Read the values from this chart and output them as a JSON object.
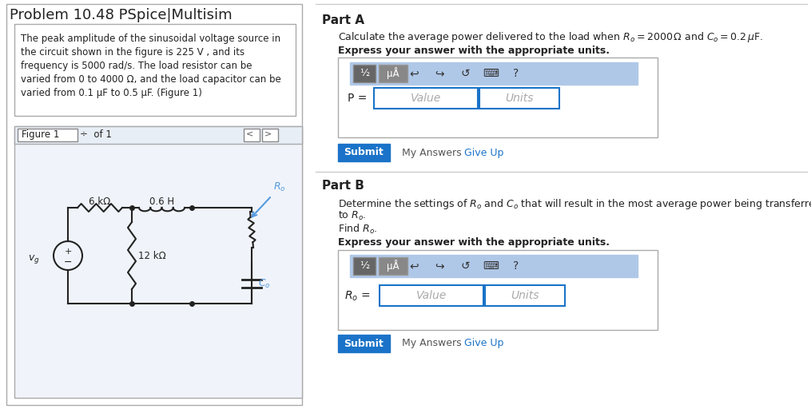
{
  "title": "Problem 10.48 PSpice|Multisim",
  "bg_color": "#ffffff",
  "left_panel_bg": "#ffffff",
  "left_panel_border": "#cccccc",
  "problem_text_lines": [
    "The peak amplitude of the sinusoidal voltage source in",
    "the circuit shown in the figure is 225 V , and its",
    "frequency is 5000 rad/s. The load resistor can be",
    "varied from 0 to 4000 Ω, and the load capacitor can be",
    "varied from 0.1 μF to 0.5 μF. (Figure 1)"
  ],
  "figure_label": "Figure 1",
  "figure_of": "÷ of 1",
  "part_a_label": "Part A",
  "part_a_question": "Calculate the average power delivered to the load when $R_o = 2000\\,\\Omega$ and $C_o = 0.2\\,\\mu$F.",
  "part_a_express": "Express your answer with the appropriate units.",
  "part_a_P_label": "P =",
  "part_a_value": "Value",
  "part_a_units": "Units",
  "submit_label": "Submit",
  "my_answers_label": "My Answers",
  "give_up_label": "Give Up",
  "part_b_label": "Part B",
  "part_b_line1": "Determine the settings of $R_o$ and $C_o$ that will result in the most average power being transferred",
  "part_b_line2": "to $R_o$.",
  "part_b_line3": "Find $R_o$.",
  "part_b_express": "Express your answer with the appropriate units.",
  "part_b_Ro_label": "$R_o$ =",
  "part_b_value": "Value",
  "part_b_units": "Units",
  "submit_b_label": "Submit",
  "circuit": {
    "vs_label": "$v_g$",
    "r1_label": "6 kΩ",
    "l1_label": "0.6 H",
    "r2_label": "12 kΩ",
    "ro_label": "$R_o$",
    "co_label": "$C_o$"
  },
  "toolbar_bg": "#b8cce4",
  "toolbar_bg2": "#a0b8d0",
  "input_border": "#1a73c8",
  "submit_btn_color": "#1a73c8",
  "submit_btn_text": "#ffffff",
  "give_up_color": "#1a73c8",
  "separator_color": "#cccccc"
}
